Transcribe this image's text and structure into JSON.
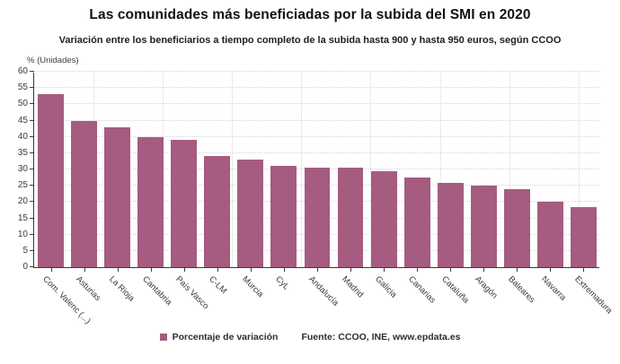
{
  "header": {
    "title": "Las comunidades más beneficiadas por la subida del SMI en 2020",
    "subtitle": "Variación entre los beneficiarios a tiempo completo de la subida hasta 900 y hasta 950 euros, según CCOO"
  },
  "chart_data": {
    "type": "bar",
    "title": "Las comunidades más beneficiadas por la subida del SMI en 2020",
    "subtitle": "Variación entre los beneficiarios a tiempo completo de la subida hasta 900 y hasta 950 euros, según CCOO",
    "unit_label": "% (Unidades)",
    "categories": [
      "Com. Valenc (...)",
      "Asturias",
      "La Rioja",
      "Cantabria",
      "País Vasco",
      "C-LM",
      "Murcia",
      "CyL",
      "Andalucía",
      "Madrid",
      "Galicia",
      "Canarias",
      "Cataluña",
      "Aragón",
      "Baleares",
      "Navarra",
      "Extremadura"
    ],
    "values": [
      53,
      45,
      43,
      40,
      39,
      34,
      33,
      31,
      30.5,
      30.5,
      29.5,
      27.5,
      26,
      25,
      24,
      20,
      18.5
    ],
    "series_name": "Porcentaje de variación",
    "ylim": [
      0,
      60
    ],
    "yticks": [
      0,
      5,
      10,
      15,
      20,
      25,
      30,
      35,
      40,
      45,
      50,
      55,
      60
    ],
    "grid": true,
    "bar_color": "#a55c80",
    "legend_position": "bottom"
  },
  "legend": {
    "label": "Porcentaje de variación",
    "swatch_color": "#a55c80"
  },
  "footer": {
    "source": "Fuente: CCOO, INE, www.epdata.es"
  }
}
